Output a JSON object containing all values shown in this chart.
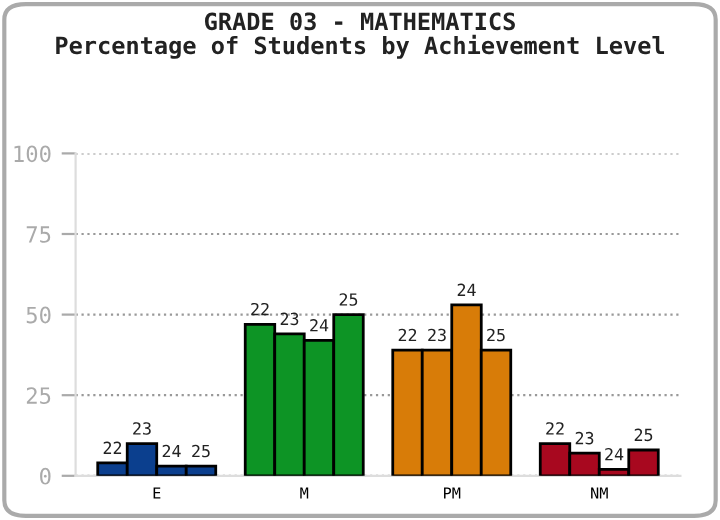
{
  "chart_data": {
    "type": "bar",
    "title": "GRADE 03 - MATHEMATICS",
    "subtitle": "Percentage of Students by Achievement Level",
    "categories": [
      "E",
      "M",
      "PM",
      "NM"
    ],
    "series": [
      {
        "name": "22",
        "colors": [
          "#0b3f8e",
          "#0d9425",
          "#d87c08",
          "#a8081f"
        ],
        "values": [
          4,
          47,
          39,
          10
        ]
      },
      {
        "name": "23",
        "colors": [
          "#0b3f8e",
          "#0d9425",
          "#d87c08",
          "#a8081f"
        ],
        "values": [
          10,
          44,
          39,
          7
        ]
      },
      {
        "name": "24",
        "colors": [
          "#0b3f8e",
          "#0d9425",
          "#d87c08",
          "#a8081f"
        ],
        "values": [
          3,
          42,
          53,
          2
        ]
      },
      {
        "name": "25",
        "colors": [
          "#0b3f8e",
          "#0d9425",
          "#d87c08",
          "#a8081f"
        ],
        "values": [
          3,
          50,
          39,
          8
        ]
      }
    ],
    "ylim": [
      0,
      100
    ],
    "yticks": [
      0,
      25,
      50,
      75,
      100
    ],
    "grid": "y",
    "legend": false
  }
}
